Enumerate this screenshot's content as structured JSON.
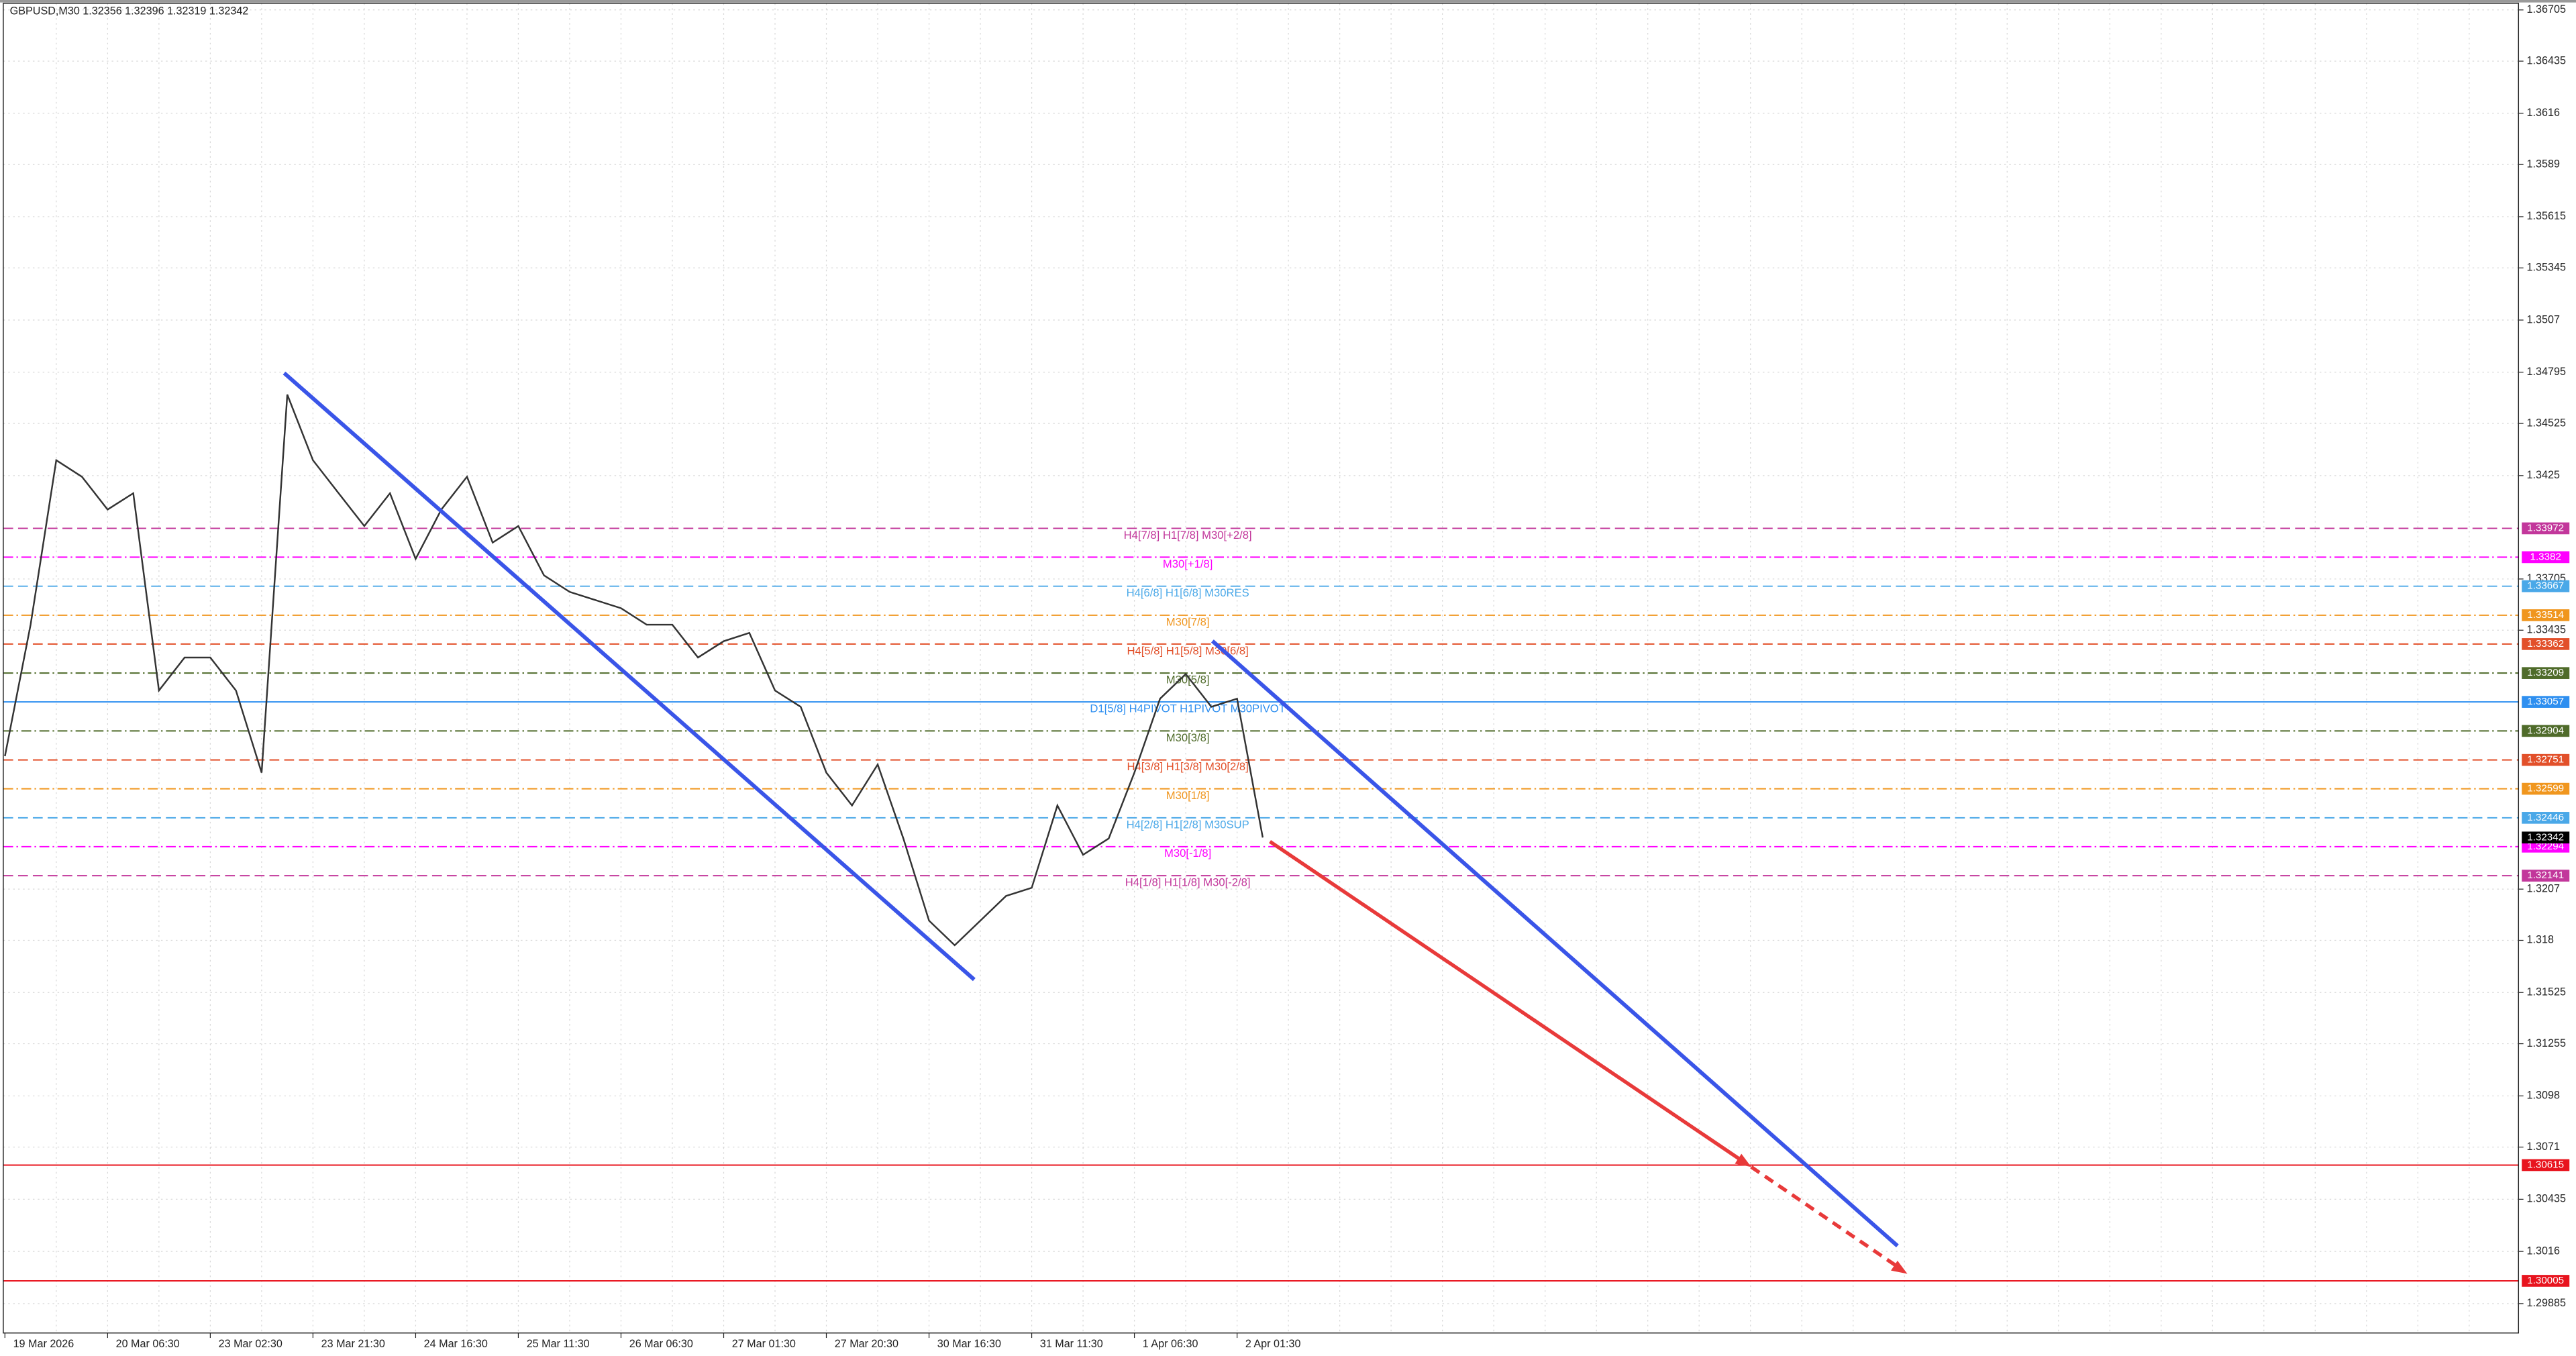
{
  "chart_data": {
    "type": "line",
    "title": "GBPUSD,M30  1.32356 1.32396 1.32319 1.32342",
    "color": "#333333",
    "categories": [
      "19 Mar 2026",
      null,
      null,
      null,
      "20 Mar 06:30",
      null,
      null,
      null,
      "23 Mar 02:30",
      null,
      null,
      null,
      "23 Mar 21:30",
      null,
      null,
      null,
      "24 Mar 16:30",
      null,
      null,
      null,
      "25 Mar 11:30",
      null,
      null,
      null,
      "26 Mar 06:30",
      null,
      null,
      null,
      "27 Mar 01:30",
      null,
      null,
      null,
      "27 Mar 20:30",
      null,
      null,
      null,
      "30 Mar 16:30",
      null,
      null,
      null,
      "31 Mar 11:30",
      null,
      null,
      null,
      "1 Apr 06:30",
      null,
      null,
      null,
      "2 Apr 01:30",
      null
    ],
    "values": [
      1.32771,
      1.33464,
      1.34331,
      1.34244,
      1.34071,
      1.34157,
      1.33117,
      1.33291,
      1.33291,
      1.33117,
      1.32684,
      1.34677,
      1.34331,
      1.34157,
      1.33984,
      1.34157,
      1.33811,
      1.34071,
      1.34244,
      1.33897,
      1.33984,
      1.33724,
      1.33637,
      1.33594,
      1.33551,
      1.33464,
      1.33464,
      1.33291,
      1.33377,
      1.33421,
      1.33117,
      1.33031,
      1.32684,
      1.32511,
      1.32727,
      1.32337,
      1.31904,
      1.31774,
      1.31904,
      1.32034,
      1.32077,
      1.32511,
      1.32251,
      1.32337,
      1.32684,
      1.33074,
      1.33204,
      1.33031,
      1.33074,
      1.32342
    ],
    "ylim": [
      1.2973,
      1.3674
    ],
    "yticks": [
      1.36705,
      1.36435,
      1.3616,
      1.3589,
      1.35615,
      1.35345,
      1.3507,
      1.34795,
      1.34525,
      1.3425,
      1.33705,
      1.33435,
      1.3207,
      1.318,
      1.31525,
      1.31255,
      1.3098,
      1.3071,
      1.30435,
      1.3016,
      1.29885
    ],
    "grid": true,
    "current_price": 1.32342,
    "current_price_color": "#000000",
    "levels": [
      {
        "value": 1.33972,
        "text": "H4[7/8] H1[7/8] M30[+2/8]",
        "color": "#c2379b",
        "style": "dashed"
      },
      {
        "value": 1.3382,
        "text": "M30[+1/8]",
        "color": "#ff00ff",
        "style": "dashdot"
      },
      {
        "value": 1.33667,
        "text": "H4[6/8] H1[6/8] M30RES",
        "color": "#4aa8e8",
        "style": "dashed"
      },
      {
        "value": 1.33514,
        "text": "M30[7/8]",
        "color": "#f0961e",
        "style": "dashdot"
      },
      {
        "value": 1.33362,
        "text": "H4[5/8] H1[5/8] M30[6/8]",
        "color": "#e2502a",
        "style": "dashed"
      },
      {
        "value": 1.33209,
        "text": "M30[5/8]",
        "color": "#4f6b2a",
        "style": "dashdot"
      },
      {
        "value": 1.33057,
        "text": "D1[5/8] H4PIVOT H1PIVOT M30PIVOT",
        "color": "#2e8ff0",
        "style": "solid"
      },
      {
        "value": 1.32904,
        "text": "M30[3/8]",
        "color": "#4f6b2a",
        "style": "dashdot"
      },
      {
        "value": 1.32751,
        "text": "H4[3/8] H1[3/8] M30[2/8]",
        "color": "#e2502a",
        "style": "dashed"
      },
      {
        "value": 1.32599,
        "text": "M30[1/8]",
        "color": "#f0961e",
        "style": "dashdot"
      },
      {
        "value": 1.32446,
        "text": "H4[2/8] H1[2/8] M30SUP",
        "color": "#4aa8e8",
        "style": "dashed"
      },
      {
        "value": 1.32294,
        "text": "M30[-1/8]",
        "color": "#ff00ff",
        "style": "dashdot"
      },
      {
        "value": 1.32141,
        "text": "H4[1/8] H1[1/8] M30[-2/8]",
        "color": "#c2379b",
        "style": "dashed"
      },
      {
        "value": 1.30615,
        "color": "#e8141e",
        "style": "solid"
      },
      {
        "value": 1.30005,
        "color": "#e8141e",
        "style": "solid"
      }
    ]
  }
}
